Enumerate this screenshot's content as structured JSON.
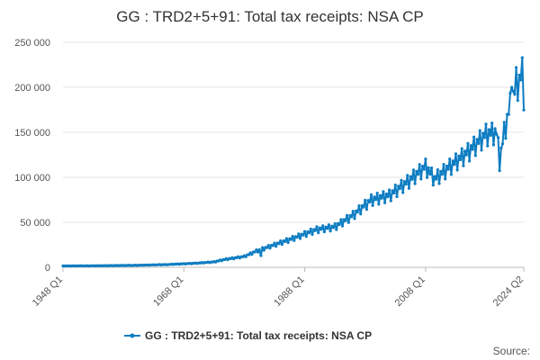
{
  "chart_data": {
    "type": "line",
    "title": "GG : TRD2+5+91: Total tax receipts: NSA CP",
    "source_label": "Source:",
    "xlabel": "",
    "ylabel": "",
    "ylim": [
      0,
      250000
    ],
    "y_ticks": [
      {
        "value": 0,
        "label": "0"
      },
      {
        "value": 50000,
        "label": "50 000"
      },
      {
        "value": 100000,
        "label": "100 000"
      },
      {
        "value": 150000,
        "label": "150 000"
      },
      {
        "value": 200000,
        "label": "200 000"
      },
      {
        "value": 250000,
        "label": "250 000"
      }
    ],
    "x_start": "1948 Q1",
    "x_end": "2024 Q2",
    "x_tick_labels": [
      "1948 Q1",
      "1968 Q1",
      "1988 Q1",
      "2008 Q1",
      "2024 Q2"
    ],
    "grid": "horizontal",
    "legend_position": "bottom",
    "series_color": "#0e7dc2",
    "series": [
      {
        "name": "GG : TRD2+5+91: Total tax receipts: NSA CP",
        "frequency": "quarterly",
        "anchors": [
          {
            "quarter": "1948 Q1",
            "value": 1500
          },
          {
            "quarter": "1955 Q1",
            "value": 1800
          },
          {
            "quarter": "1960 Q1",
            "value": 2200
          },
          {
            "quarter": "1965 Q1",
            "value": 3000
          },
          {
            "quarter": "1970 Q1",
            "value": 4500
          },
          {
            "quarter": "1973 Q1",
            "value": 6000
          },
          {
            "quarter": "1975 Q1",
            "value": 9000
          },
          {
            "quarter": "1978 Q1",
            "value": 12000
          },
          {
            "quarter": "1980 Q1",
            "value": 18000
          },
          {
            "quarter": "1983 Q1",
            "value": 25000
          },
          {
            "quarter": "1986 Q1",
            "value": 32000
          },
          {
            "quarter": "1990 Q1",
            "value": 42000
          },
          {
            "quarter": "1993 Q1",
            "value": 45000
          },
          {
            "quarter": "1996 Q1",
            "value": 58000
          },
          {
            "quarter": "1999 Q1",
            "value": 75000
          },
          {
            "quarter": "2002 Q1",
            "value": 80000
          },
          {
            "quarter": "2005 Q1",
            "value": 95000
          },
          {
            "quarter": "2008 Q1",
            "value": 112000
          },
          {
            "quarter": "2009 Q3",
            "value": 98000
          },
          {
            "quarter": "2012 Q1",
            "value": 112000
          },
          {
            "quarter": "2015 Q1",
            "value": 128000
          },
          {
            "quarter": "2018 Q1",
            "value": 148000
          },
          {
            "quarter": "2019 Q4",
            "value": 150000
          },
          {
            "quarter": "2020 Q2",
            "value": 118000
          },
          {
            "quarter": "2021 Q1",
            "value": 150000
          },
          {
            "quarter": "2022 Q1",
            "value": 180000
          },
          {
            "quarter": "2023 Q1",
            "value": 200000
          },
          {
            "quarter": "2024 Q1",
            "value": 215000
          },
          {
            "quarter": "2024 Q2",
            "value": 192000
          }
        ],
        "seasonal_amplitude_fraction": 0.09,
        "peaks": [
          {
            "quarter": "1980 Q4",
            "value": 13000
          },
          {
            "quarter": "2022 Q2",
            "value": 200000
          },
          {
            "quarter": "2023 Q1",
            "value": 222000
          },
          {
            "quarter": "2024 Q1",
            "value": 233000
          }
        ]
      }
    ]
  }
}
